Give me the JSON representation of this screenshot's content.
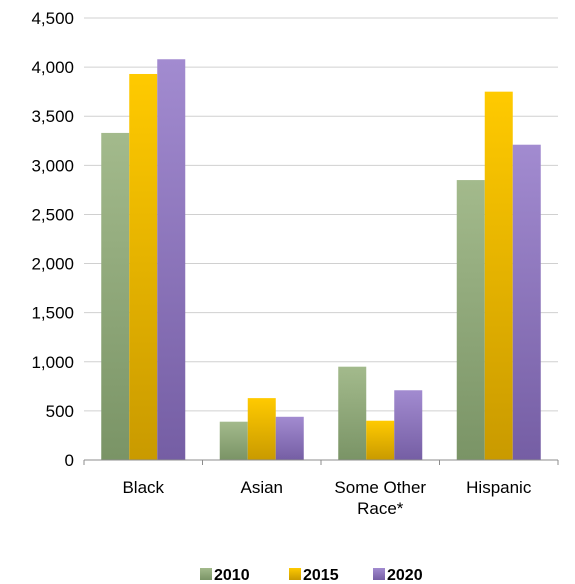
{
  "chart_data": {
    "type": "bar",
    "categories": [
      "Black",
      "Asian",
      "Some Other Race*",
      "Hispanic"
    ],
    "category_lines": [
      [
        "Black"
      ],
      [
        "Asian"
      ],
      [
        "Some Other",
        "Race*"
      ],
      [
        "Hispanic"
      ]
    ],
    "series": [
      {
        "name": "2010",
        "values": [
          3330,
          390,
          950,
          2850
        ],
        "color": "#8fa878"
      },
      {
        "name": "2015",
        "values": [
          3930,
          630,
          400,
          3750
        ],
        "color": "#f0b400"
      },
      {
        "name": "2020",
        "values": [
          4080,
          440,
          710,
          3210
        ],
        "color": "#9378bf"
      }
    ],
    "yticks": [
      "0",
      "500",
      "1,000",
      "1,500",
      "2,000",
      "2,500",
      "3,000",
      "3,500",
      "4,000",
      "4,500"
    ],
    "ylim": [
      0,
      4500
    ],
    "grid": true,
    "legend_position": "bottom"
  }
}
